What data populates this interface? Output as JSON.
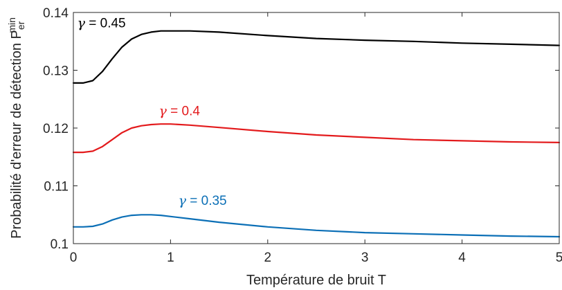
{
  "chart_data": {
    "type": "line",
    "xlabel": "Température de bruit T",
    "ylabel": {
      "text": "Probabilité d'erreur de détection P",
      "sub": "er",
      "sup": "min"
    },
    "xlim": [
      0,
      5
    ],
    "ylim": [
      0.1,
      0.14
    ],
    "xticks": [
      "0",
      "1",
      "2",
      "3",
      "4",
      "5"
    ],
    "yticks": [
      "0.1",
      "0.11",
      "0.12",
      "0.13",
      "0.14"
    ],
    "grid": false,
    "series": [
      {
        "name": "γ = 0.45",
        "color": "#000000",
        "x": [
          0,
          0.1,
          0.2,
          0.3,
          0.4,
          0.5,
          0.6,
          0.7,
          0.8,
          0.9,
          1.0,
          1.2,
          1.5,
          2.0,
          2.5,
          3.0,
          3.5,
          4.0,
          4.5,
          5.0
        ],
        "y": [
          0.1278,
          0.1278,
          0.1282,
          0.1298,
          0.132,
          0.134,
          0.1354,
          0.1362,
          0.1366,
          0.1368,
          0.1368,
          0.1368,
          0.1366,
          0.136,
          0.1355,
          0.1352,
          0.135,
          0.1347,
          0.1345,
          0.1343
        ]
      },
      {
        "name": "γ = 0.4",
        "color": "#e31a1c",
        "x": [
          0,
          0.1,
          0.2,
          0.3,
          0.4,
          0.5,
          0.6,
          0.7,
          0.8,
          0.9,
          1.0,
          1.2,
          1.5,
          2.0,
          2.5,
          3.0,
          3.5,
          4.0,
          4.5,
          5.0
        ],
        "y": [
          0.1158,
          0.1158,
          0.116,
          0.1168,
          0.118,
          0.1192,
          0.12,
          0.1204,
          0.1206,
          0.1207,
          0.1207,
          0.1205,
          0.1201,
          0.1194,
          0.1188,
          0.1184,
          0.118,
          0.1178,
          0.1176,
          0.1175
        ]
      },
      {
        "name": "γ = 0.35",
        "color": "#0b6fb6",
        "x": [
          0,
          0.1,
          0.2,
          0.3,
          0.4,
          0.5,
          0.6,
          0.7,
          0.8,
          0.9,
          1.0,
          1.2,
          1.5,
          2.0,
          2.5,
          3.0,
          3.5,
          4.0,
          4.5,
          5.0
        ],
        "y": [
          0.1029,
          0.1029,
          0.103,
          0.1034,
          0.1041,
          0.1046,
          0.1049,
          0.105,
          0.105,
          0.1049,
          0.1047,
          0.1043,
          0.1037,
          0.1029,
          0.1023,
          0.1019,
          0.1017,
          0.1015,
          0.1013,
          0.1012
        ]
      }
    ],
    "annotations": [
      {
        "prefix": "γ",
        "text": " = 0.45",
        "color": "#000000",
        "x": 0.04,
        "y": 0.1374
      },
      {
        "prefix": "γ",
        "text": " = 0.4",
        "color": "#e31a1c",
        "x": 0.88,
        "y": 0.1222
      },
      {
        "prefix": "γ",
        "text": " = 0.35",
        "color": "#0b6fb6",
        "x": 1.08,
        "y": 0.1067
      }
    ]
  }
}
